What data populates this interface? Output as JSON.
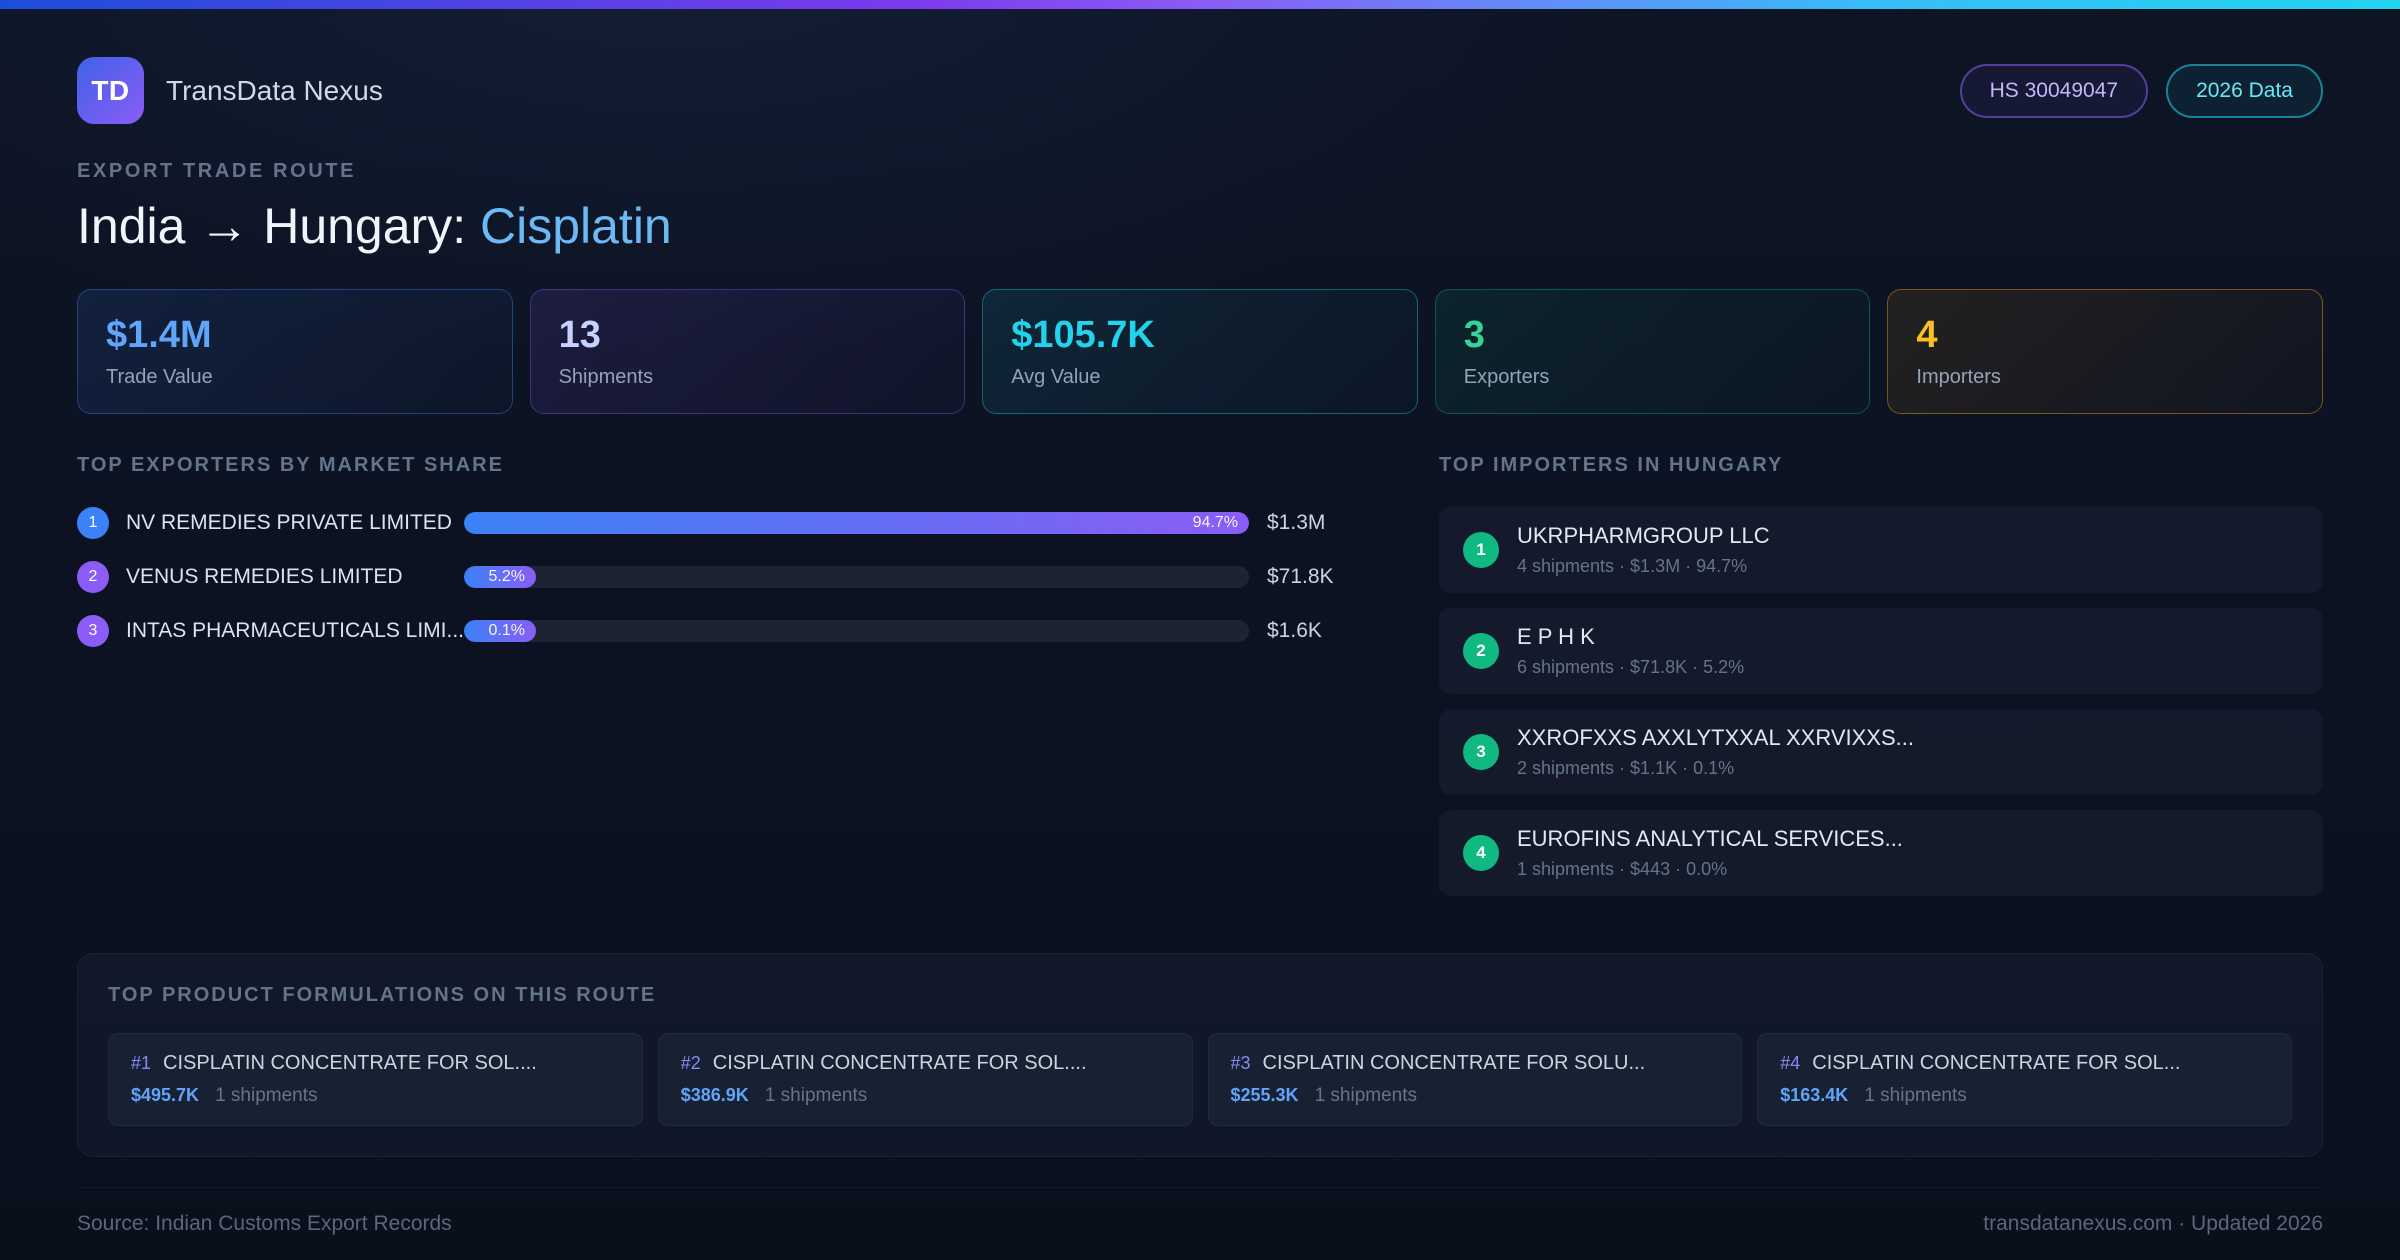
{
  "header": {
    "logo_text": "TD",
    "app_name": "TransData Nexus",
    "hs_badge": "HS 30049047",
    "year_badge": "2026 Data"
  },
  "hero": {
    "eyebrow": "EXPORT TRADE ROUTE",
    "title_prefix": "India → Hungary: ",
    "title_highlight": "Cisplatin"
  },
  "stats": [
    {
      "value": "$1.4M",
      "label": "Trade Value"
    },
    {
      "value": "13",
      "label": "Shipments"
    },
    {
      "value": "$105.7K",
      "label": "Avg Value"
    },
    {
      "value": "3",
      "label": "Exporters"
    },
    {
      "value": "4",
      "label": "Importers"
    }
  ],
  "exporters": {
    "title": "TOP EXPORTERS BY MARKET SHARE",
    "items": [
      {
        "rank": "1",
        "name": "NV REMEDIES PRIVATE LIMITED",
        "share": "94.7%",
        "share_pct": 94.7,
        "value": "$1.3M"
      },
      {
        "rank": "2",
        "name": "VENUS REMEDIES LIMITED",
        "share": "5.2%",
        "share_pct": 5.2,
        "value": "$71.8K"
      },
      {
        "rank": "3",
        "name": "INTAS PHARMACEUTICALS LIMI...",
        "share": "0.1%",
        "share_pct": 0.1,
        "value": "$1.6K"
      }
    ]
  },
  "importers": {
    "title": "TOP IMPORTERS IN HUNGARY",
    "items": [
      {
        "rank": "1",
        "name": "UKRPHARMGROUP LLC",
        "detail": "4 shipments · $1.3M · 94.7%"
      },
      {
        "rank": "2",
        "name": "E P H K",
        "detail": "6 shipments · $71.8K · 5.2%"
      },
      {
        "rank": "3",
        "name": "XXROFXXS AXXLYTXXAL XXRVIXXS...",
        "detail": "2 shipments · $1.1K · 0.1%"
      },
      {
        "rank": "4",
        "name": "EUROFINS ANALYTICAL SERVICES...",
        "detail": "1 shipments · $443 · 0.0%"
      }
    ]
  },
  "products": {
    "title": "TOP PRODUCT FORMULATIONS ON THIS ROUTE",
    "items": [
      {
        "rank": "#1",
        "name": "CISPLATIN CONCENTRATE FOR SOL....",
        "value": "$495.7K",
        "shipments": "1 shipments"
      },
      {
        "rank": "#2",
        "name": "CISPLATIN CONCENTRATE FOR SOL....",
        "value": "$386.9K",
        "shipments": "1 shipments"
      },
      {
        "rank": "#3",
        "name": "CISPLATIN CONCENTRATE FOR SOLU...",
        "value": "$255.3K",
        "shipments": "1 shipments"
      },
      {
        "rank": "#4",
        "name": "CISPLATIN CONCENTRATE FOR SOL...",
        "value": "$163.4K",
        "shipments": "1 shipments"
      }
    ]
  },
  "footer": {
    "source": "Source: Indian Customs Export Records",
    "site": "transdatanexus.com · Updated 2026"
  }
}
